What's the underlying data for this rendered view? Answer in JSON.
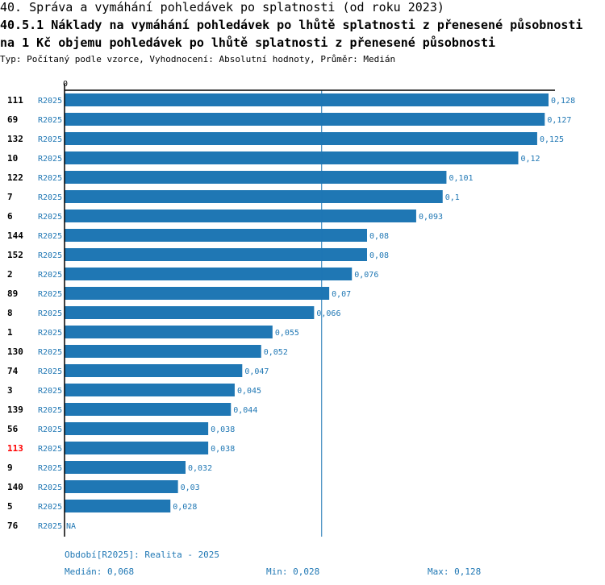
{
  "header": {
    "title1": "40. Správa a vymáhání pohledávek po splatnosti (od roku 2023)",
    "title2": "40.5.1 Náklady na vymáhání pohledávek po lhůtě splatnosti z přenesené působnosti",
    "title3": "na 1 Kč objemu pohledávek po lhůtě splatnosti z přenesené působnosti",
    "subtitle": "Typ: Počítaný podle vzorce, Vyhodnocení: Absolutní hodnoty, Průměr: Medián"
  },
  "chart_data": {
    "type": "bar",
    "orientation": "horizontal",
    "axis_zero_label": "0",
    "xlim": [
      0,
      0.128
    ],
    "median_line": 0.068,
    "series_label": "R2025",
    "highlight_color": "#ff0000",
    "bar_color": "#1f77b4",
    "rows": [
      {
        "category": "111",
        "value": 0.128,
        "label": "0,128",
        "highlight": false
      },
      {
        "category": "69",
        "value": 0.127,
        "label": "0,127",
        "highlight": false
      },
      {
        "category": "132",
        "value": 0.125,
        "label": "0,125",
        "highlight": false
      },
      {
        "category": "10",
        "value": 0.12,
        "label": "0,12",
        "highlight": false
      },
      {
        "category": "122",
        "value": 0.101,
        "label": "0,101",
        "highlight": false
      },
      {
        "category": "7",
        "value": 0.1,
        "label": "0,1",
        "highlight": false
      },
      {
        "category": "6",
        "value": 0.093,
        "label": "0,093",
        "highlight": false
      },
      {
        "category": "144",
        "value": 0.08,
        "label": "0,08",
        "highlight": false
      },
      {
        "category": "152",
        "value": 0.08,
        "label": "0,08",
        "highlight": false
      },
      {
        "category": "2",
        "value": 0.076,
        "label": "0,076",
        "highlight": false
      },
      {
        "category": "89",
        "value": 0.07,
        "label": "0,07",
        "highlight": false
      },
      {
        "category": "8",
        "value": 0.066,
        "label": "0,066",
        "highlight": false
      },
      {
        "category": "1",
        "value": 0.055,
        "label": "0,055",
        "highlight": false
      },
      {
        "category": "130",
        "value": 0.052,
        "label": "0,052",
        "highlight": false
      },
      {
        "category": "74",
        "value": 0.047,
        "label": "0,047",
        "highlight": false
      },
      {
        "category": "3",
        "value": 0.045,
        "label": "0,045",
        "highlight": false
      },
      {
        "category": "139",
        "value": 0.044,
        "label": "0,044",
        "highlight": false
      },
      {
        "category": "56",
        "value": 0.038,
        "label": "0,038",
        "highlight": false
      },
      {
        "category": "113",
        "value": 0.038,
        "label": "0,038",
        "highlight": true
      },
      {
        "category": "9",
        "value": 0.032,
        "label": "0,032",
        "highlight": false
      },
      {
        "category": "140",
        "value": 0.03,
        "label": "0,03",
        "highlight": false
      },
      {
        "category": "5",
        "value": 0.028,
        "label": "0,028",
        "highlight": false
      },
      {
        "category": "76",
        "value": null,
        "label": "NA",
        "highlight": false
      }
    ]
  },
  "footer": {
    "period": "Období[R2025]: Realita - 2025",
    "median": "Medián: 0,068",
    "min": "Min: 0,028",
    "max": "Max: 0,128"
  }
}
